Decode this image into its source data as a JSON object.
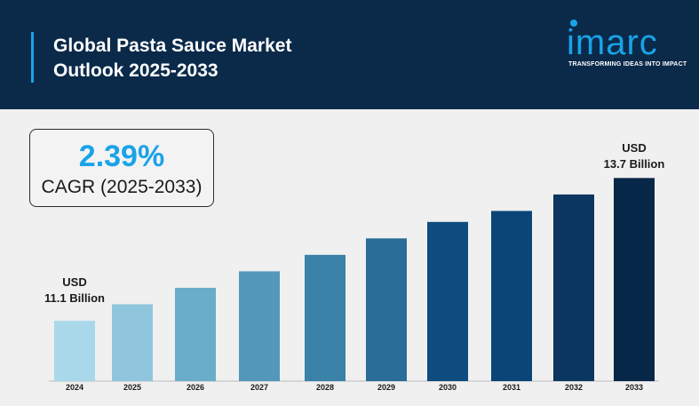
{
  "header": {
    "title_line1": "Global Pasta Sauce Market",
    "title_line2": "Outlook 2025-2033"
  },
  "logo": {
    "name": "imarc",
    "tagline": "TRANSFORMING IDEAS INTO IMPACT",
    "color": "#1aa3e8"
  },
  "cagr": {
    "value": "2.39%",
    "label": "CAGR (2025-2033)"
  },
  "annotations": {
    "start": {
      "line1": "USD",
      "line2": "11.1 Billion"
    },
    "end": {
      "line1": "USD",
      "line2": "13.7 Billion"
    }
  },
  "chart_data": {
    "type": "bar",
    "categories": [
      "2024",
      "2025",
      "2026",
      "2027",
      "2028",
      "2029",
      "2030",
      "2031",
      "2032",
      "2033"
    ],
    "values": [
      11.1,
      11.4,
      11.7,
      12.0,
      12.3,
      12.6,
      12.9,
      13.1,
      13.4,
      13.7
    ],
    "ylim": [
      10.0,
      13.9
    ],
    "grid": false,
    "colors": [
      "#a9d8ea",
      "#8fc6de",
      "#6aadca",
      "#5298ba",
      "#3a82a8",
      "#2a6d99",
      "#0f4d80",
      "#0b4578",
      "#0a3660",
      "#072748"
    ]
  }
}
